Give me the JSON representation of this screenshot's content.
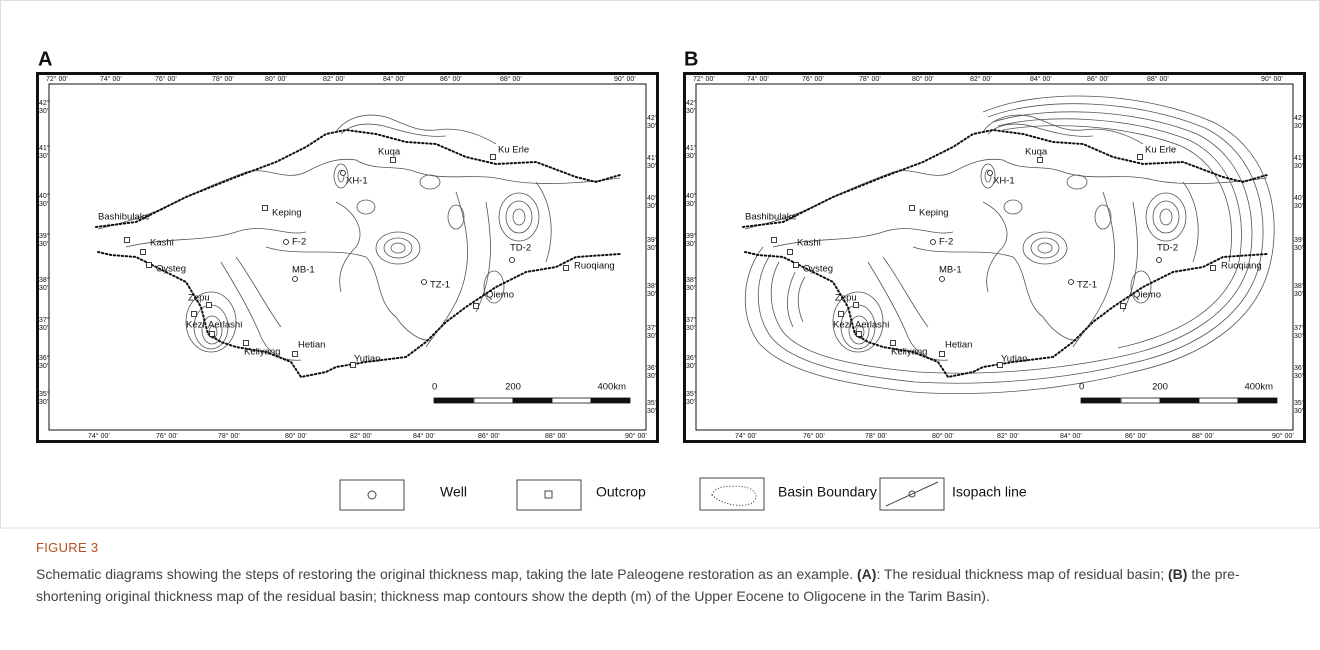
{
  "panels": [
    {
      "label": "A"
    },
    {
      "label": "B"
    }
  ],
  "map": {
    "top_ticks": [
      "72° 00'",
      "74° 00'",
      "76° 00'",
      "78° 00'",
      "80° 00'",
      "82° 00'",
      "84° 00'",
      "86° 00'",
      "88° 00'",
      "90° 00'"
    ],
    "bottom_ticks": [
      "74° 00'",
      "76° 00'",
      "78° 00'",
      "80° 00'",
      "82° 00'",
      "84° 00'",
      "86° 00'",
      "88° 00'",
      "90° 00'"
    ],
    "lat_ticks": [
      {
        "deg": "42°",
        "min": "30'"
      },
      {
        "deg": "41°",
        "min": "30'"
      },
      {
        "deg": "40°",
        "min": "30'"
      },
      {
        "deg": "39°",
        "min": "30'"
      },
      {
        "deg": "38°",
        "min": "30'"
      },
      {
        "deg": "37°",
        "min": "30'"
      },
      {
        "deg": "36°",
        "min": "30'"
      },
      {
        "deg": "35°",
        "min": "30'"
      }
    ],
    "places": [
      "Kuqa",
      "Ku Erle",
      "XH-1",
      "Keping",
      "Bashibulake",
      "Kashi",
      "F-2",
      "Oysteg",
      "MB-1",
      "TD-2",
      "Ruoqiang",
      "TZ-1",
      "Qiemo",
      "Zepu",
      "Kezi",
      "Aerlashi",
      "Keliyang",
      "Hetian",
      "Yutian"
    ],
    "scale_labels": [
      "0",
      "200",
      "400km"
    ]
  },
  "legend": [
    {
      "label": "Well"
    },
    {
      "label": "Outcrop"
    },
    {
      "label": "Basin Boundary"
    },
    {
      "label": "Isopach line"
    }
  ],
  "caption": {
    "label": "FIGURE 3",
    "parts": [
      "Schematic diagrams showing the steps of restoring the original thickness map, taking the late Paleogene restoration as an example. ",
      "(A)",
      ": The residual thickness map of residual basin; ",
      "(B)",
      " the pre-shortening original thickness map of the residual basin; thickness map contours show the depth (m) of the Upper Eocene to Oligocene in the Tarim Basin)."
    ]
  }
}
